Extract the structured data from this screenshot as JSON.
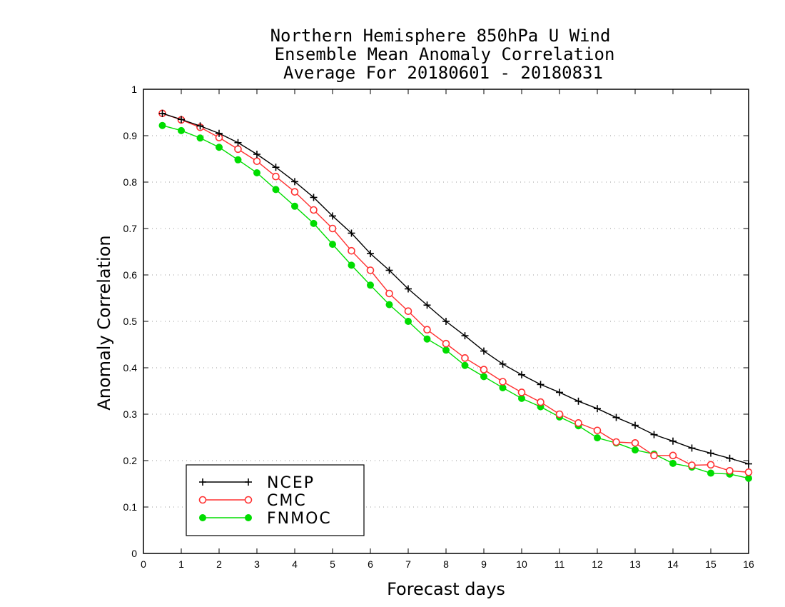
{
  "chart_data": {
    "type": "line",
    "title": [
      "Northern Hemisphere 850hPa U Wind",
      "Ensemble Mean Anomaly Correlation",
      "Average For 20180601 - 20180831"
    ],
    "xlabel": "Forecast days",
    "ylabel": "Anomaly Correlation",
    "xlim": [
      0,
      16
    ],
    "ylim": [
      0,
      1
    ],
    "xticks": [
      "0",
      "1",
      "2",
      "3",
      "4",
      "5",
      "6",
      "7",
      "8",
      "9",
      "10",
      "11",
      "12",
      "13",
      "14",
      "15",
      "16"
    ],
    "yticks": [
      "0",
      "0.1",
      "0.2",
      "0.3",
      "0.4",
      "0.5",
      "0.6",
      "0.7",
      "0.8",
      "0.9",
      "1"
    ],
    "grid": "horizontal-dotted",
    "legend_position": "bottom-left",
    "x": [
      0.5,
      1,
      1.5,
      2,
      2.5,
      3,
      3.5,
      4,
      4.5,
      5,
      5.5,
      6,
      6.5,
      7,
      7.5,
      8,
      8.5,
      9,
      9.5,
      10,
      10.5,
      11,
      11.5,
      12,
      12.5,
      13,
      13.5,
      14,
      14.5,
      15,
      15.5,
      16
    ],
    "series": [
      {
        "name": "NCEP",
        "color": "#000000",
        "marker": "plus",
        "values": [
          0.948,
          0.935,
          0.921,
          0.905,
          0.885,
          0.86,
          0.832,
          0.801,
          0.767,
          0.727,
          0.69,
          0.646,
          0.61,
          0.57,
          0.535,
          0.5,
          0.469,
          0.436,
          0.408,
          0.385,
          0.364,
          0.347,
          0.328,
          0.312,
          0.293,
          0.276,
          0.256,
          0.242,
          0.227,
          0.216,
          0.205,
          0.193
        ]
      },
      {
        "name": "CMC",
        "color": "#ff3030",
        "marker": "open-circle",
        "values": [
          0.948,
          0.934,
          0.918,
          0.896,
          0.871,
          0.845,
          0.812,
          0.779,
          0.74,
          0.7,
          0.652,
          0.61,
          0.56,
          0.522,
          0.482,
          0.452,
          0.421,
          0.396,
          0.37,
          0.347,
          0.326,
          0.3,
          0.281,
          0.265,
          0.24,
          0.238,
          0.211,
          0.211,
          0.19,
          0.191,
          0.178,
          0.175
        ]
      },
      {
        "name": "FNMOC",
        "color": "#00dd00",
        "marker": "filled-circle",
        "values": [
          0.922,
          0.911,
          0.895,
          0.875,
          0.848,
          0.82,
          0.784,
          0.748,
          0.711,
          0.666,
          0.621,
          0.578,
          0.536,
          0.5,
          0.462,
          0.438,
          0.405,
          0.381,
          0.357,
          0.334,
          0.316,
          0.294,
          0.275,
          0.249,
          0.238,
          0.223,
          0.214,
          0.194,
          0.186,
          0.173,
          0.171,
          0.162
        ]
      }
    ]
  }
}
